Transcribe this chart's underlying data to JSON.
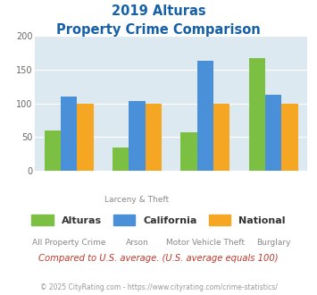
{
  "title_line1": "2019 Alturas",
  "title_line2": "Property Crime Comparison",
  "alturas": [
    60,
    35,
    57,
    166
  ],
  "california": [
    110,
    103,
    163,
    113
  ],
  "national": [
    100,
    100,
    100,
    100
  ],
  "bar_colors": {
    "alturas": "#7BC043",
    "california": "#4A90D9",
    "national": "#F5A623"
  },
  "ylim": [
    0,
    200
  ],
  "yticks": [
    0,
    50,
    100,
    150,
    200
  ],
  "bg_color": "#dce9f0",
  "title_color": "#1560a8",
  "label_color": "#888888",
  "subtitle_note": "Compared to U.S. average. (U.S. average equals 100)",
  "footer": "© 2025 CityRating.com - https://www.cityrating.com/crime-statistics/",
  "note_color": "#c0392b",
  "footer_color": "#999999",
  "cat_labels": [
    [
      "All Property Crime",
      ""
    ],
    [
      "Arson",
      "Larceny & Theft"
    ],
    [
      "Motor Vehicle Theft",
      ""
    ],
    [
      "Burglary",
      ""
    ]
  ]
}
